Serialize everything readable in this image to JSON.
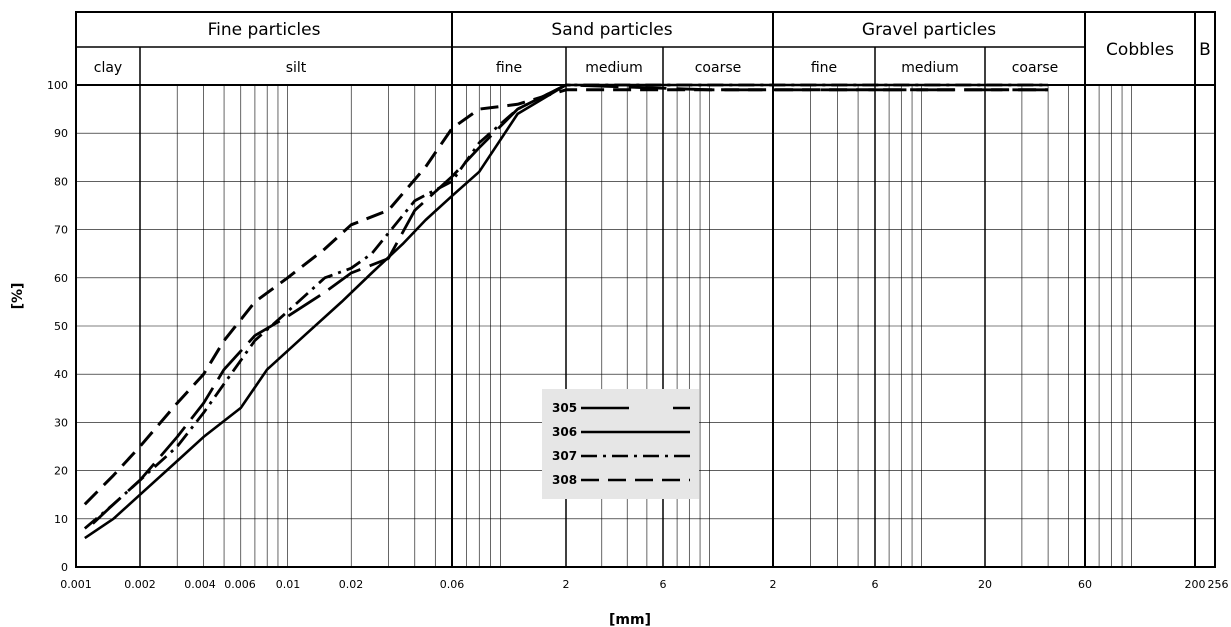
{
  "chart_data": {
    "type": "line",
    "xlabel": "[mm]",
    "ylabel": "[%]",
    "ylim": [
      0,
      100
    ],
    "y_ticks": [
      0,
      10,
      20,
      30,
      40,
      50,
      60,
      70,
      80,
      90,
      100
    ],
    "x_tick_labels": [
      "0.001",
      "0.002",
      "0.004",
      "0.006",
      "0.01",
      "0.02",
      "0.06",
      "2",
      "6",
      "2",
      "6",
      "20",
      "60",
      "200",
      "256"
    ],
    "header_groups": [
      "Fine particles",
      "Sand particles",
      "Gravel particles"
    ],
    "header_subgroups": [
      "clay",
      "silt",
      "fine",
      "medium",
      "coarse",
      "fine",
      "medium",
      "coarse"
    ],
    "header_single": [
      "Cobbles",
      "B"
    ],
    "grid": true,
    "legend_position": "center",
    "series": [
      {
        "name": "305",
        "style": "long-dash-gap",
        "x": [
          0.0012,
          0.0015,
          0.002,
          0.003,
          0.004,
          0.005,
          0.007,
          0.01,
          0.015,
          0.02,
          0.03,
          0.04,
          0.06,
          0.08,
          0.12,
          0.2,
          1,
          10,
          40
        ],
        "y": [
          9,
          13,
          18,
          27,
          34,
          41,
          48,
          52,
          57,
          61,
          64,
          74,
          81,
          87,
          95,
          100,
          99,
          99,
          99
        ]
      },
      {
        "name": "306",
        "style": "solid",
        "x": [
          0.0011,
          0.0015,
          0.002,
          0.003,
          0.004,
          0.006,
          0.008,
          0.012,
          0.018,
          0.025,
          0.035,
          0.045,
          0.06,
          0.08,
          0.12,
          0.2,
          1,
          10,
          40
        ],
        "y": [
          6,
          10,
          15,
          22,
          27,
          33,
          41,
          48,
          55,
          61,
          67,
          72,
          77,
          82,
          94,
          100,
          100,
          100,
          100
        ]
      },
      {
        "name": "307",
        "style": "dash-dot",
        "x": [
          0.0011,
          0.0015,
          0.002,
          0.003,
          0.004,
          0.005,
          0.007,
          0.01,
          0.015,
          0.02,
          0.025,
          0.04,
          0.06,
          0.08,
          0.12,
          0.2,
          1,
          10,
          40
        ],
        "y": [
          8,
          13,
          18,
          25,
          32,
          38,
          47,
          53,
          60,
          62,
          65,
          76,
          80,
          88,
          95,
          100,
          100,
          100,
          100
        ]
      },
      {
        "name": "308",
        "style": "long-dash",
        "x": [
          0.0011,
          0.0015,
          0.002,
          0.003,
          0.004,
          0.005,
          0.007,
          0.01,
          0.015,
          0.02,
          0.03,
          0.045,
          0.06,
          0.08,
          0.12,
          0.2,
          1,
          10,
          40
        ],
        "y": [
          13,
          19,
          25,
          34,
          40,
          47,
          55,
          60,
          66,
          71,
          74,
          83,
          91,
          95,
          96,
          99,
          99,
          99,
          99
        ]
      }
    ]
  }
}
